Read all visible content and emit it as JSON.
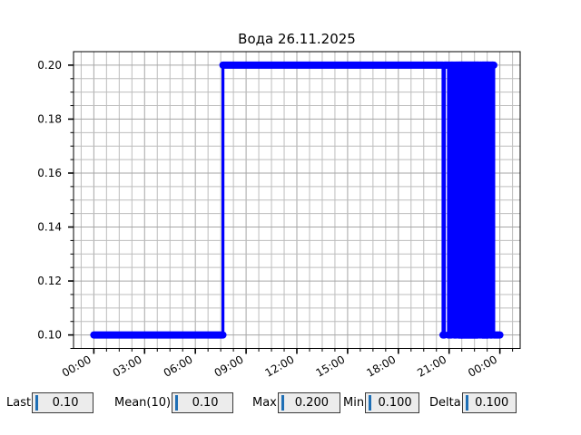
{
  "chart_data": {
    "type": "line",
    "title": "Вода 26.11.2025",
    "line_color": "#0000ff",
    "x_tick_labels": [
      "00:00",
      "03:00",
      "06:00",
      "09:00",
      "12:00",
      "15:00",
      "18:00",
      "21:00",
      "00:00"
    ],
    "x_tick_hours": [
      0,
      3,
      6,
      9,
      12,
      15,
      18,
      21,
      24
    ],
    "x_minor_step_hours": 0.75,
    "y_tick_labels": [
      "0.20",
      "0.18",
      "0.16",
      "0.14",
      "0.12",
      "0.10"
    ],
    "y_tick_values": [
      0.2,
      0.18,
      0.16,
      0.14,
      0.12,
      0.1
    ],
    "y_minor_step": 0.005,
    "xlim_hours": [
      -1.2,
      25.2
    ],
    "ylim": [
      0.095,
      0.205
    ],
    "grid": true,
    "low": 0.1,
    "high": 0.2,
    "segments": [
      {
        "from": 0.0,
        "to": 7.63,
        "mode": "hold",
        "value": 0.1
      },
      {
        "from": 7.63,
        "to": 20.64,
        "mode": "hold",
        "value": 0.2
      },
      {
        "from": 20.64,
        "to": 20.8,
        "mode": "osc",
        "period": 0.16
      },
      {
        "from": 20.8,
        "to": 20.96,
        "mode": "hold",
        "value": 0.2
      },
      {
        "from": 20.96,
        "to": 21.17,
        "mode": "osc",
        "period": 0.11
      },
      {
        "from": 21.17,
        "to": 21.3,
        "mode": "hold",
        "value": 0.2
      },
      {
        "from": 21.3,
        "to": 21.46,
        "mode": "osc",
        "period": 0.08
      },
      {
        "from": 21.46,
        "to": 21.55,
        "mode": "hold",
        "value": 0.2
      },
      {
        "from": 21.55,
        "to": 22.72,
        "mode": "osc",
        "period": 0.03
      },
      {
        "from": 22.72,
        "to": 22.82,
        "mode": "hold",
        "value": 0.2
      },
      {
        "from": 22.82,
        "to": 22.87,
        "mode": "osc",
        "period": 0.05
      },
      {
        "from": 22.87,
        "to": 22.94,
        "mode": "hold",
        "value": 0.2
      },
      {
        "from": 22.94,
        "to": 23.31,
        "mode": "osc",
        "period": 0.03
      },
      {
        "from": 23.31,
        "to": 23.42,
        "mode": "hold",
        "value": 0.2
      },
      {
        "from": 23.42,
        "to": 23.57,
        "mode": "osc",
        "period": 0.05
      },
      {
        "from": 23.57,
        "to": 23.64,
        "mode": "hold",
        "value": 0.2
      },
      {
        "from": 23.64,
        "to": 24.0,
        "mode": "hold",
        "value": 0.1
      }
    ]
  },
  "stats": [
    {
      "label": "Last",
      "value": "0.10"
    },
    {
      "label": "Mean(10)",
      "value": "0.10"
    },
    {
      "label": "Max",
      "value": "0.200"
    },
    {
      "label": "Min",
      "value": "0.100"
    },
    {
      "label": "Delta",
      "value": "0.100"
    }
  ],
  "colors": {
    "line": "#0000ff",
    "grid_minor": "#bdbdbd",
    "grid_major": "#a6a6a6",
    "spine": "#000000",
    "caret": "#1f6fb5",
    "box_bg": "#ececec",
    "box_border": "#3a3a3a",
    "text": "#000000"
  }
}
